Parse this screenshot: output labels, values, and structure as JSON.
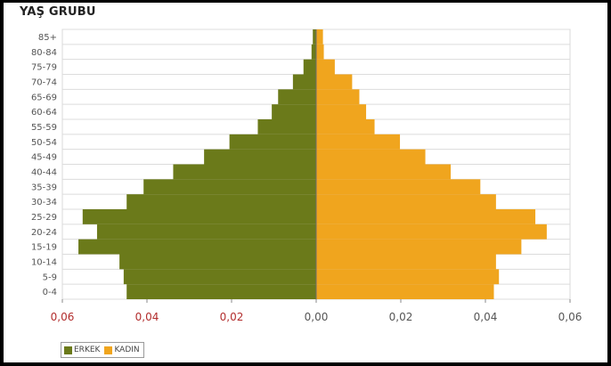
{
  "chart_data": {
    "type": "bar",
    "orientation": "horizontal",
    "subtype": "population-pyramid",
    "title": "YAŞ GRUBU",
    "categories": [
      "85+",
      "80-84",
      "75-79",
      "70-74",
      "65-69",
      "60-64",
      "55-59",
      "50-54",
      "45-49",
      "40-44",
      "35-39",
      "30-34",
      "25-29",
      "20-24",
      "15-19",
      "10-14",
      "5-9",
      "0-4"
    ],
    "series": [
      {
        "name": "ERKEK",
        "color": "#6b7a1a",
        "values": [
          0.0008,
          0.0011,
          0.003,
          0.0055,
          0.009,
          0.0105,
          0.0138,
          0.0205,
          0.0265,
          0.0338,
          0.0408,
          0.0448,
          0.0552,
          0.0518,
          0.0562,
          0.0465,
          0.0455,
          0.0448
        ]
      },
      {
        "name": "KADIN",
        "color": "#f0a51e",
        "values": [
          0.0016,
          0.0018,
          0.0044,
          0.0085,
          0.0102,
          0.0118,
          0.0138,
          0.0198,
          0.0258,
          0.0318,
          0.0388,
          0.0425,
          0.0518,
          0.0545,
          0.0485,
          0.0425,
          0.0432,
          0.042
        ]
      }
    ],
    "x_ticks": [
      "0,06",
      "0,04",
      "0,02",
      "0,00",
      "0,02",
      "0,04",
      "0,06"
    ],
    "xlim": [
      -0.06,
      0.06
    ],
    "grid": true,
    "legend": "bottom-left"
  }
}
